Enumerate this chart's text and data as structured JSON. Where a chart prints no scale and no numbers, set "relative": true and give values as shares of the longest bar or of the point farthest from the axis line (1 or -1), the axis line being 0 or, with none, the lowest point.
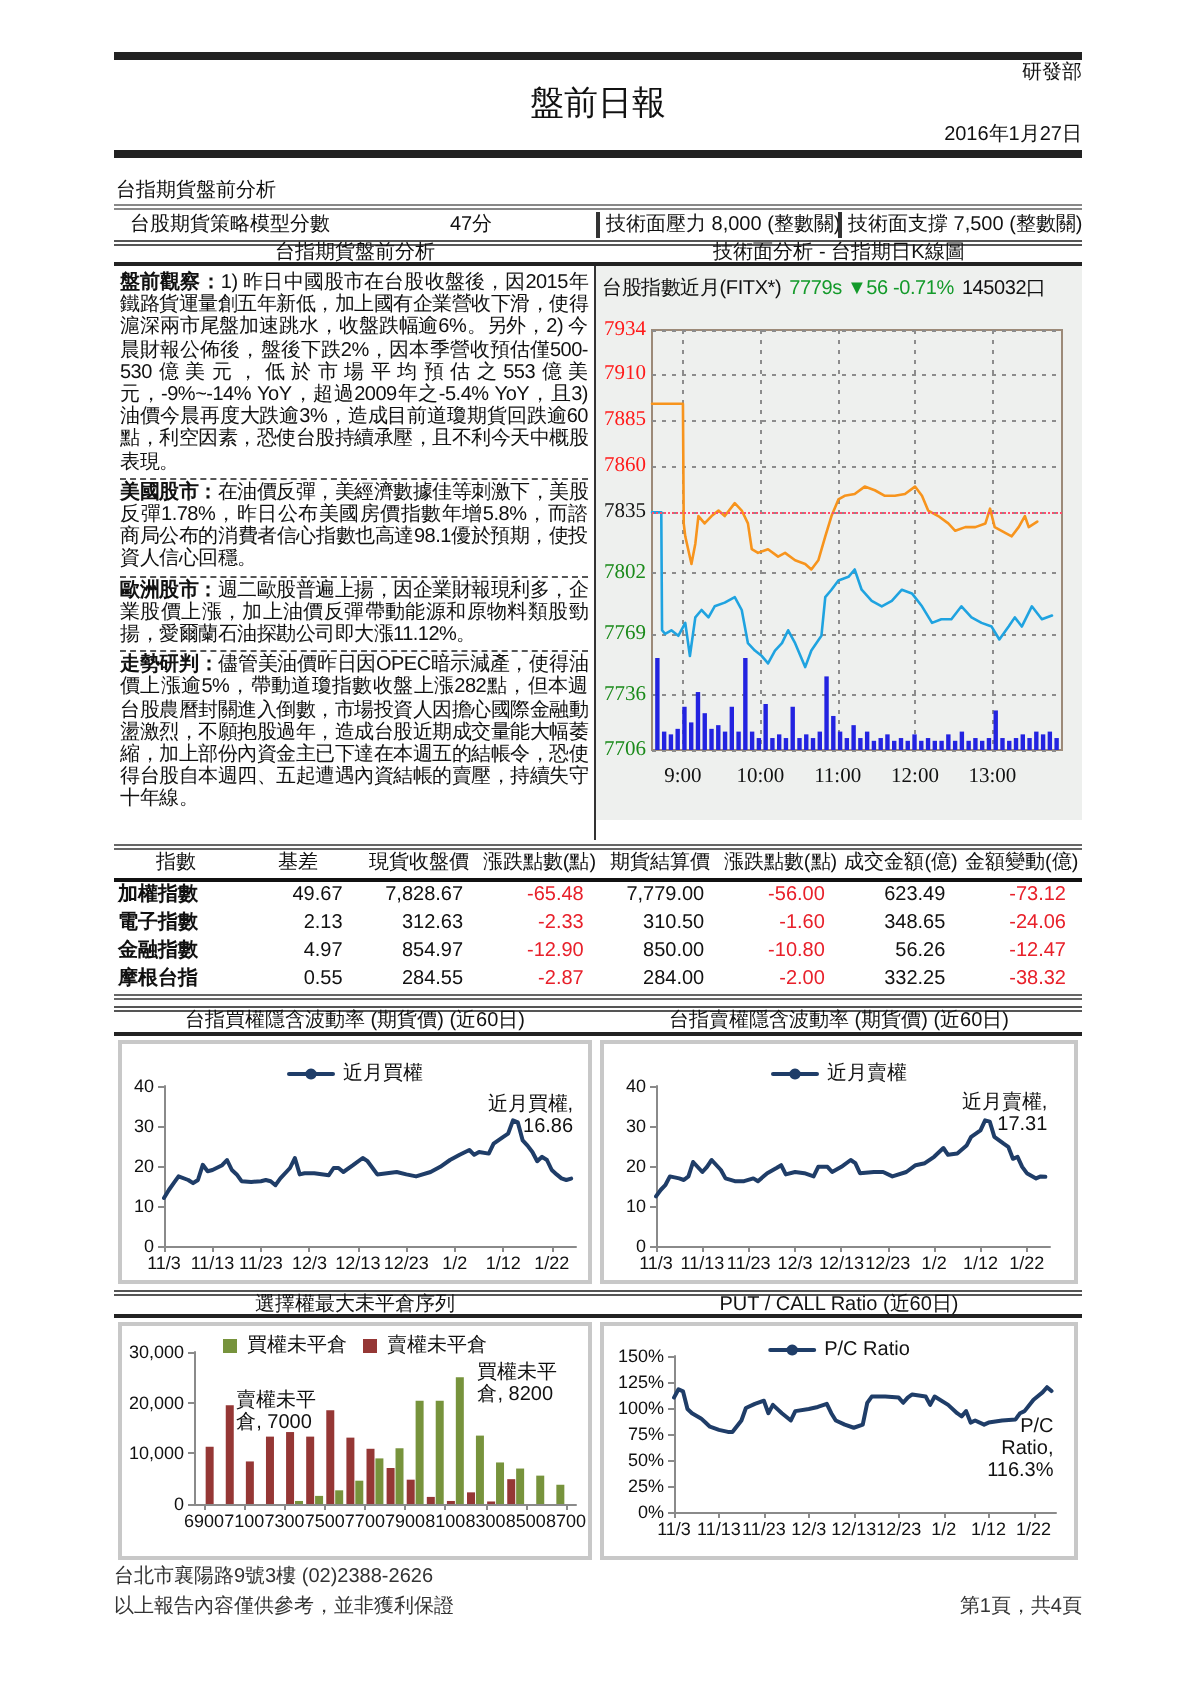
{
  "chart_data": [
    {
      "type": "other",
      "title": "盤前日報",
      "annotations": [
        "研發部",
        "2016年1月27日"
      ]
    },
    {
      "type": "other",
      "title": "台指期貨盤前分析",
      "annotations": [
        "台股期貨策略模型分數",
        "47分",
        "技術面壓力 8,000 (整數關)",
        "技術面支撐 7,500 (整數關)"
      ]
    },
    {
      "type": "other",
      "title": "台指期貨盤前分析",
      "annotations": [
        "盤前觀察：",
        "1) 昨日中國股市在台股收盤後，因2015年鐵路貨運量創五年新低，加上國有企業營收下滑，使得滬深兩市尾盤加速跳水，收盤跌幅逾6%。另外，2) 今晨財報公佈後，盤後下跌2%，因本季營收預估僅500-530億美元，低於市場平均預估之553億美元，-9%~-14% YoY，超過2009年之-5.4% YoY，且3) 油價今晨再度大跌逾3%，造成目前道瓊期貨回跌逾60點，利空因素，恐使台股持續承壓，且不利今天中概股表現。",
        "美國股市：",
        "在油價反彈，美經濟數據佳等刺激下，美股反彈1.78%，昨日公布美國房價指數年增5.8%，而諮商局公布的消費者信心指數也高達98.1優於預期，使投資人信心回穩。",
        "歐洲股市：",
        "週二歐股普遍上揚，因企業財報現利多，企業股價上漲，加上油價反彈帶動能源和原物料類股勁揚，愛爾蘭石油探勘公司即大漲11.12%。",
        "走勢研判：",
        "儘管美油價昨日因OPEC暗示減產，使得油價上漲逾5%，帶動道瓊指數收盤上漲282點，但本週台股農曆封關進入倒數，市場投資人因擔心國際金融動盪激烈，不願抱股過年，造成台股近期成交量能大幅萎縮，加上部份內資金主已下達在本週五的結帳令，恐使得台股自本週四、五起遭遇內資結帳的賣壓，持續失守十年線。"
      ]
    },
    {
      "type": "line",
      "title": "技術面分析 - 台指期日K線圖",
      "subtitle": "台股指數近月(FITX*)",
      "annotations": [
        "7779s ▼56 -0.71%",
        "145032口"
      ],
      "marker": "none",
      "grid": true,
      "xlim": [
        8.6,
        13.9
      ],
      "xticks": [
        {
          "value": 9,
          "label": "9:00"
        },
        {
          "value": 10,
          "label": "10:00"
        },
        {
          "value": 11,
          "label": "11:00"
        },
        {
          "value": 12,
          "label": "12:00"
        },
        {
          "value": 13,
          "label": "13:00"
        }
      ],
      "ylim": [
        7706,
        7934
      ],
      "yticks": [
        7706,
        7736,
        7769,
        7802,
        7835,
        7860,
        7885,
        7910,
        7934
      ],
      "ref_lines": [
        {
          "axis": "y",
          "value": 7835,
          "color": "#ff4d6d",
          "line_style": "dotted"
        }
      ],
      "series": [
        {
          "color": "#f7941d",
          "x": [
            8.6,
            9.0,
            9.01,
            9.03,
            9.11,
            9.16,
            9.2,
            9.28,
            9.37,
            9.46,
            9.54,
            9.67,
            9.76,
            9.84,
            9.89,
            9.97,
            10.1,
            10.23,
            10.32,
            10.45,
            10.58,
            10.66,
            10.75,
            10.84,
            10.92,
            11.01,
            11.09,
            11.22,
            11.35,
            11.48,
            11.61,
            11.74,
            11.87,
            12.0,
            12.09,
            12.17,
            12.3,
            12.43,
            12.52,
            12.65,
            12.78,
            12.91,
            12.97,
            13.03,
            13.16,
            13.25,
            13.34,
            13.42,
            13.47,
            13.58
          ],
          "values": [
            7894,
            7894,
            7829,
            7822,
            7807,
            7818,
            7833,
            7829,
            7833,
            7836,
            7833,
            7840,
            7836,
            7829,
            7815,
            7813,
            7815,
            7811,
            7813,
            7809,
            7807,
            7804,
            7809,
            7822,
            7833,
            7842,
            7844,
            7845,
            7849,
            7847,
            7844,
            7844,
            7845,
            7849,
            7844,
            7836,
            7833,
            7829,
            7825,
            7827,
            7827,
            7829,
            7837,
            7827,
            7824,
            7822,
            7827,
            7833,
            7827,
            7830
          ]
        },
        {
          "color": "#1fa3e0",
          "x": [
            8.6,
            8.72,
            8.73,
            8.77,
            8.85,
            8.94,
            9.03,
            9.09,
            9.16,
            9.24,
            9.33,
            9.41,
            9.54,
            9.67,
            9.76,
            9.84,
            9.93,
            10.02,
            10.1,
            10.19,
            10.28,
            10.36,
            10.45,
            10.58,
            10.66,
            10.79,
            10.84,
            10.92,
            11.01,
            11.14,
            11.22,
            11.31,
            11.44,
            11.57,
            11.7,
            11.83,
            11.96,
            12.09,
            12.22,
            12.34,
            12.47,
            12.6,
            12.73,
            12.86,
            12.99,
            13.09,
            13.21,
            13.29,
            13.38,
            13.51,
            13.64,
            13.77
          ],
          "values": [
            7835,
            7835,
            7771,
            7769,
            7771,
            7768,
            7775,
            7757,
            7778,
            7782,
            7778,
            7784,
            7786,
            7789,
            7782,
            7764,
            7760,
            7757,
            7753,
            7760,
            7764,
            7771,
            7764,
            7751,
            7760,
            7768,
            7789,
            7793,
            7798,
            7800,
            7804,
            7793,
            7787,
            7784,
            7787,
            7793,
            7791,
            7784,
            7775,
            7777,
            7777,
            7784,
            7778,
            7775,
            7773,
            7766,
            7773,
            7778,
            7773,
            7784,
            7777,
            7779
          ]
        }
      ]
    },
    {
      "type": "bar",
      "relative": true,
      "color": "#2323e0",
      "categories": [
        null,
        null,
        null,
        null,
        null,
        null,
        null,
        null,
        null,
        null,
        null,
        null,
        null,
        null,
        null,
        null,
        null,
        null,
        null,
        null,
        null,
        null,
        null,
        null,
        null,
        null,
        null,
        null,
        null,
        null,
        null,
        null,
        null,
        null,
        null,
        null,
        null,
        null,
        null,
        null,
        null,
        null,
        null,
        null,
        null,
        null,
        null,
        null,
        null,
        null,
        null,
        null,
        null,
        null,
        null,
        null,
        null,
        null,
        null,
        null
      ],
      "values": [
        1,
        0.2,
        0.17,
        0.23,
        0.47,
        0.3,
        0.63,
        0.4,
        0.23,
        0.27,
        0.2,
        0.47,
        0.2,
        1,
        0.2,
        0.13,
        0.5,
        0.13,
        0.17,
        0.13,
        0.47,
        0.13,
        0.17,
        0.13,
        0.2,
        0.8,
        0.37,
        0.2,
        0.13,
        0.27,
        0.13,
        0.2,
        0.1,
        0.13,
        0.17,
        0.1,
        0.13,
        0.1,
        0.17,
        0.1,
        0.13,
        0.1,
        0.1,
        0.17,
        0.1,
        0.2,
        0.1,
        0.13,
        0.1,
        0.13,
        0.43,
        0.13,
        0.1,
        0.13,
        0.17,
        0.13,
        0.2,
        0.17,
        0.2,
        0.13
      ]
    },
    {
      "type": "other",
      "ylabel": "指數",
      "categories": [
        "基差",
        "現貨收盤價",
        "漲跌點數(點)",
        "期貨結算價",
        "漲跌點數(點)",
        "成交金額(億)",
        "金額變動(億)"
      ],
      "y_categories": [
        "加權指數",
        "電子指數",
        "金融指數",
        "摩根台指"
      ],
      "cell_labels": [
        [
          "49.67",
          "7,828.67",
          "-65.48",
          "7,779.00",
          "-56.00",
          "623.49",
          "-73.12"
        ],
        [
          "2.13",
          "312.63",
          "-2.33",
          "310.50",
          "-1.60",
          "348.65",
          "-24.06"
        ],
        [
          "4.97",
          "854.97",
          "-12.90",
          "850.00",
          "-10.80",
          "56.26",
          "-12.47"
        ],
        [
          "0.55",
          "284.55",
          "-2.87",
          "284.00",
          "-2.00",
          "332.25",
          "-38.32"
        ]
      ]
    },
    {
      "type": "line",
      "title": "台指買權隱含波動率 (期貨價) (近60日)",
      "legend": "top",
      "marker": "none",
      "xlim": [
        "2015-11-03",
        "2016-01-27"
      ],
      "xticks": [
        {
          "value": "2015-11-03",
          "label": "11/3"
        },
        {
          "value": "2015-11-13",
          "label": "11/13"
        },
        {
          "value": "2015-11-23",
          "label": "11/23"
        },
        {
          "value": "2015-12-03",
          "label": "12/3"
        },
        {
          "value": "2015-12-13",
          "label": "12/13"
        },
        {
          "value": "2015-12-23",
          "label": "12/23"
        },
        {
          "value": "2016-01-02",
          "label": "1/2"
        },
        {
          "value": "2016-01-12",
          "label": "1/12"
        },
        {
          "value": "2016-01-22",
          "label": "1/22"
        }
      ],
      "ylim": [
        0,
        40
      ],
      "yticks": [
        0,
        10,
        20,
        30,
        40
      ],
      "annotations": [
        {
          "text": "近月買權, 16.86",
          "x": "2016-01-26",
          "y": 16.86
        }
      ],
      "series": [
        {
          "name": "近月買權",
          "color": "#1f3d68",
          "x": [
            "2015-11-03",
            "2015-11-04",
            "2015-11-05",
            "2015-11-06",
            "2015-11-08",
            "2015-11-09",
            "2015-11-10",
            "2015-11-11",
            "2015-11-12",
            "2015-11-13",
            "2015-11-15",
            "2015-11-16",
            "2015-11-17",
            "2015-11-18",
            "2015-11-19",
            "2015-11-21",
            "2015-11-23",
            "2015-11-24",
            "2015-11-25",
            "2015-11-26",
            "2015-11-27",
            "2015-11-29",
            "2015-11-30",
            "2015-12-01",
            "2015-12-02",
            "2015-12-04",
            "2015-12-07",
            "2015-12-08",
            "2015-12-09",
            "2015-12-10",
            "2015-12-12",
            "2015-12-14",
            "2015-12-15",
            "2015-12-17",
            "2015-12-19",
            "2015-12-21",
            "2015-12-23",
            "2015-12-25",
            "2015-12-28",
            "2015-12-30",
            "2016-01-01",
            "2016-01-03",
            "2016-01-05",
            "2016-01-06",
            "2016-01-07",
            "2016-01-09",
            "2016-01-10",
            "2016-01-12",
            "2016-01-13",
            "2016-01-14",
            "2016-01-15",
            "2016-01-16",
            "2016-01-17",
            "2016-01-18",
            "2016-01-19",
            "2016-01-20",
            "2016-01-21",
            "2016-01-22",
            "2016-01-23",
            "2016-01-24",
            "2016-01-25",
            "2016-01-26"
          ],
          "values": [
            12.0,
            14.0,
            15.7,
            17.4,
            16.5,
            15.7,
            16.5,
            20.3,
            18.7,
            19.0,
            20.2,
            21.5,
            19.0,
            17.9,
            16.2,
            16.0,
            16.2,
            16.5,
            16.2,
            15.2,
            16.9,
            19.5,
            22.0,
            17.9,
            18.2,
            18.2,
            17.7,
            19.5,
            19.5,
            18.5,
            20.2,
            22.0,
            21.2,
            17.9,
            18.2,
            18.5,
            17.9,
            17.4,
            18.5,
            19.8,
            21.5,
            22.8,
            24.0,
            22.8,
            23.5,
            23.1,
            25.6,
            27.3,
            28.1,
            31.4,
            30.9,
            26.4,
            25.1,
            23.5,
            21.2,
            22.3,
            21.5,
            19.0,
            17.9,
            16.9,
            16.5,
            16.86
          ]
        }
      ]
    },
    {
      "type": "line",
      "title": "台指賣權隱含波動率 (期貨價) (近60日)",
      "legend": "top",
      "marker": "none",
      "xlim": [
        "2015-11-03",
        "2016-01-27"
      ],
      "xticks": [
        {
          "value": "2015-11-03",
          "label": "11/3"
        },
        {
          "value": "2015-11-13",
          "label": "11/13"
        },
        {
          "value": "2015-11-23",
          "label": "11/23"
        },
        {
          "value": "2015-12-03",
          "label": "12/3"
        },
        {
          "value": "2015-12-13",
          "label": "12/13"
        },
        {
          "value": "2015-12-23",
          "label": "12/23"
        },
        {
          "value": "2016-01-02",
          "label": "1/2"
        },
        {
          "value": "2016-01-12",
          "label": "1/12"
        },
        {
          "value": "2016-01-22",
          "label": "1/22"
        }
      ],
      "ylim": [
        0,
        40
      ],
      "yticks": [
        0,
        10,
        20,
        30,
        40
      ],
      "annotations": [
        {
          "text": "近月賣權, 17.31",
          "x": "2016-01-26",
          "y": 17.31
        }
      ],
      "series": [
        {
          "name": "近月賣權",
          "color": "#1f3d68",
          "x": [
            "2015-11-03",
            "2015-11-04",
            "2015-11-05",
            "2015-11-06",
            "2015-11-08",
            "2015-11-09",
            "2015-11-10",
            "2015-11-11",
            "2015-11-13",
            "2015-11-14",
            "2015-11-15",
            "2015-11-17",
            "2015-11-18",
            "2015-11-20",
            "2015-11-22",
            "2015-11-24",
            "2015-11-25",
            "2015-11-27",
            "2015-11-29",
            "2015-11-30",
            "2015-12-01",
            "2015-12-03",
            "2015-12-05",
            "2015-12-07",
            "2015-12-08",
            "2015-12-10",
            "2015-12-11",
            "2015-12-13",
            "2015-12-15",
            "2015-12-16",
            "2015-12-17",
            "2015-12-20",
            "2015-12-22",
            "2015-12-24",
            "2015-12-27",
            "2015-12-29",
            "2015-12-31",
            "2016-01-02",
            "2016-01-04",
            "2016-01-05",
            "2016-01-07",
            "2016-01-09",
            "2016-01-10",
            "2016-01-12",
            "2016-01-13",
            "2016-01-14",
            "2016-01-15",
            "2016-01-17",
            "2016-01-18",
            "2016-01-19",
            "2016-01-20",
            "2016-01-21",
            "2016-01-22",
            "2016-01-24",
            "2016-01-25",
            "2016-01-26"
          ],
          "values": [
            12.4,
            14.0,
            15.2,
            17.4,
            16.9,
            16.5,
            17.4,
            21.0,
            18.5,
            19.8,
            21.5,
            19.0,
            16.9,
            16.2,
            16.2,
            16.9,
            16.2,
            18.2,
            19.5,
            20.2,
            17.9,
            18.5,
            18.2,
            17.4,
            19.8,
            19.8,
            18.5,
            19.8,
            21.5,
            20.7,
            18.2,
            18.5,
            18.5,
            17.4,
            18.5,
            20.2,
            20.7,
            22.3,
            24.5,
            22.8,
            23.1,
            25.1,
            27.3,
            28.9,
            31.4,
            31.1,
            27.3,
            25.6,
            24.8,
            21.8,
            22.3,
            19.8,
            18.2,
            16.9,
            17.4,
            17.31
          ]
        }
      ]
    },
    {
      "type": "bar",
      "title": "選擇權最大未平倉序列",
      "legend": "top",
      "x": [
        6900,
        7000,
        7100,
        7200,
        7300,
        7400,
        7500,
        7600,
        7700,
        7800,
        7900,
        8000,
        8100,
        8200,
        8300,
        8400,
        8500,
        8600,
        8700
      ],
      "xlim": [
        6850,
        8750
      ],
      "xticks": [
        6900,
        7100,
        7300,
        7500,
        7700,
        7900,
        8100,
        8300,
        8500,
        8700
      ],
      "ylim": [
        0,
        30000
      ],
      "yticks": [
        0,
        {
          "value": 10000,
          "label": "10,000"
        },
        {
          "value": 20000,
          "label": "20,000"
        },
        {
          "value": 30000,
          "label": "30,000"
        }
      ],
      "annotations": [
        {
          "text": "賣權未平倉, 7000",
          "x": 7000,
          "y": 19500
        },
        {
          "text": "買權未平倉, 8200",
          "x": 8200,
          "y": 25000
        }
      ],
      "series": [
        {
          "name": "買權未平倉",
          "color": "#77933c",
          "values": [
            null,
            null,
            null,
            null,
            null,
            600,
            1600,
            2700,
            4600,
            9000,
            11000,
            20400,
            20400,
            25000,
            13500,
            8200,
            7000,
            5600,
            3800
          ]
        },
        {
          "name": "賣權未平倉",
          "color": "#953735",
          "values": [
            11300,
            19500,
            8400,
            13300,
            14200,
            13300,
            18500,
            13100,
            10900,
            7100,
            4800,
            1400,
            600,
            2300,
            500,
            4900,
            null,
            null,
            null
          ]
        }
      ]
    },
    {
      "type": "line",
      "title": "PUT / CALL Ratio (近60日)",
      "legend": "top",
      "marker": "none",
      "xlim": [
        "2015-11-03",
        "2016-01-27"
      ],
      "xticks": [
        {
          "value": "2015-11-03",
          "label": "11/3"
        },
        {
          "value": "2015-11-13",
          "label": "11/13"
        },
        {
          "value": "2015-11-23",
          "label": "11/23"
        },
        {
          "value": "2015-12-03",
          "label": "12/3"
        },
        {
          "value": "2015-12-13",
          "label": "12/13"
        },
        {
          "value": "2015-12-23",
          "label": "12/23"
        },
        {
          "value": "2016-01-02",
          "label": "1/2"
        },
        {
          "value": "2016-01-12",
          "label": "1/12"
        },
        {
          "value": "2016-01-22",
          "label": "1/22"
        }
      ],
      "ylim": [
        0,
        150
      ],
      "yticks": [
        {
          "value": 0,
          "label": "0%"
        },
        {
          "value": 25,
          "label": "25%"
        },
        {
          "value": 50,
          "label": "50%"
        },
        {
          "value": 75,
          "label": "75%"
        },
        {
          "value": 100,
          "label": "100%"
        },
        {
          "value": 125,
          "label": "125%"
        },
        {
          "value": 150,
          "label": "150%"
        }
      ],
      "annotations": [
        {
          "text": "P/C Ratio, 116.3%",
          "x": "2016-01-26",
          "y": 116.3
        }
      ],
      "series": [
        {
          "name": "P/C Ratio",
          "color": "#1f3d68",
          "x": [
            "2015-11-03",
            "2015-11-04",
            "2015-11-05",
            "2015-11-06",
            "2015-11-07",
            "2015-11-09",
            "2015-11-10",
            "2015-11-11",
            "2015-11-13",
            "2015-11-15",
            "2015-11-16",
            "2015-11-18",
            "2015-11-19",
            "2015-11-21",
            "2015-11-23",
            "2015-11-24",
            "2015-11-25",
            "2015-11-27",
            "2015-11-29",
            "2015-11-30",
            "2015-12-03",
            "2015-12-05",
            "2015-12-07",
            "2015-12-08",
            "2015-12-09",
            "2015-12-11",
            "2015-12-13",
            "2015-12-15",
            "2015-12-16",
            "2015-12-17",
            "2015-12-20",
            "2015-12-23",
            "2015-12-24",
            "2015-12-25",
            "2015-12-26",
            "2015-12-29",
            "2015-12-30",
            "2015-12-31",
            "2016-01-03",
            "2016-01-05",
            "2016-01-06",
            "2016-01-07",
            "2016-01-08",
            "2016-01-09",
            "2016-01-11",
            "2016-01-12",
            "2016-01-15",
            "2016-01-18",
            "2016-01-19",
            "2016-01-20",
            "2016-01-22",
            "2016-01-24",
            "2016-01-25",
            "2016-01-26"
          ],
          "values": [
            110,
            118,
            116,
            99,
            95,
            90,
            86,
            82,
            79,
            77,
            77,
            88,
            100,
            104,
            107,
            95,
            103,
            95,
            88,
            97,
            99,
            101,
            104,
            95,
            88,
            84,
            81,
            84,
            105,
            111,
            111,
            110,
            105,
            110,
            113,
            111,
            103,
            111,
            103,
            95,
            92,
            97,
            86,
            88,
            84,
            86,
            88,
            89,
            95,
            97,
            108,
            115,
            120,
            116.3
          ]
        }
      ]
    },
    {
      "type": "other",
      "annotations": [
        "台北市襄陽路9號3樓 (02)2388-2626",
        "以上報告內容僅供參考，並非獲利保證",
        "第1頁，共4頁"
      ]
    }
  ]
}
